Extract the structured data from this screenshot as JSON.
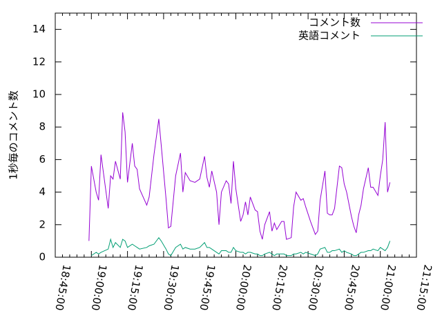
{
  "chart_data": {
    "type": "line",
    "ylabel": "1秒毎のコメント数",
    "x": [
      "18:59:00",
      "19:00:00",
      "19:02:00",
      "19:03:00",
      "19:04:00",
      "19:07:00",
      "19:08:00",
      "19:09:00",
      "19:10:00",
      "19:12:00",
      "19:13:00",
      "19:14:00",
      "19:15:00",
      "19:17:00",
      "19:18:00",
      "19:19:00",
      "19:20:00",
      "19:23:00",
      "19:24:00",
      "19:26:00",
      "19:28:00",
      "19:29:00",
      "19:31:00",
      "19:32:00",
      "19:33:00",
      "19:35:00",
      "19:37:00",
      "19:38:00",
      "19:39:00",
      "19:41:00",
      "19:43:00",
      "19:45:00",
      "19:47:00",
      "19:48:00",
      "19:49:00",
      "19:50:00",
      "19:52:00",
      "19:53:00",
      "19:54:00",
      "19:56:00",
      "19:57:00",
      "19:58:00",
      "19:59:00",
      "20:00:00",
      "20:02:00",
      "20:03:00",
      "20:04:00",
      "20:05:00",
      "20:06:00",
      "20:08:00",
      "20:09:00",
      "20:10:00",
      "20:11:00",
      "20:12:00",
      "20:14:00",
      "20:15:00",
      "20:16:00",
      "20:17:00",
      "20:19:00",
      "20:20:00",
      "20:21:00",
      "20:23:00",
      "20:24:00",
      "20:25:00",
      "20:27:00",
      "20:28:00",
      "20:29:00",
      "20:31:00",
      "20:33:00",
      "20:34:00",
      "20:35:00",
      "20:37:00",
      "20:38:00",
      "20:39:00",
      "20:40:00",
      "20:41:00",
      "20:43:00",
      "20:44:00",
      "20:45:00",
      "20:46:00",
      "20:48:00",
      "20:49:00",
      "20:50:00",
      "20:51:00",
      "20:52:00",
      "20:53:00",
      "20:55:00",
      "20:56:00",
      "20:57:00",
      "20:59:00",
      "21:00:00",
      "21:01:00",
      "21:02:00",
      "21:03:00",
      "21:04:00"
    ],
    "series": [
      {
        "name": "コメント数",
        "color": "#9400d3",
        "values": [
          1.0,
          5.6,
          4.0,
          3.5,
          6.3,
          3.0,
          5.0,
          4.8,
          5.9,
          4.8,
          8.9,
          7.7,
          4.6,
          7.0,
          5.6,
          5.4,
          4.2,
          3.2,
          3.7,
          6.3,
          8.5,
          6.9,
          3.6,
          1.8,
          1.9,
          5.0,
          6.4,
          4.0,
          5.2,
          4.7,
          4.6,
          4.8,
          6.2,
          4.9,
          4.3,
          5.3,
          4.0,
          2.0,
          4.0,
          4.7,
          4.5,
          3.3,
          5.9,
          4.2,
          2.2,
          2.6,
          3.4,
          2.6,
          3.7,
          2.9,
          2.8,
          1.6,
          1.1,
          2.0,
          2.8,
          1.6,
          2.1,
          1.7,
          2.2,
          2.2,
          1.1,
          1.2,
          3.1,
          4.0,
          3.5,
          3.6,
          3.1,
          2.2,
          1.4,
          1.6,
          3.5,
          5.3,
          2.7,
          2.6,
          2.6,
          3.0,
          5.6,
          5.5,
          4.5,
          4.0,
          2.5,
          1.9,
          1.5,
          2.6,
          3.2,
          4.2,
          5.5,
          4.3,
          4.3,
          3.8,
          5.0,
          6.0,
          8.3,
          4.0,
          4.6
        ]
      },
      {
        "name": "英語コメント",
        "color": "#009e73",
        "values": [
          null,
          0.1,
          0.3,
          0.2,
          0.3,
          0.5,
          1.1,
          0.6,
          0.9,
          0.6,
          1.1,
          1.0,
          0.6,
          0.8,
          0.7,
          0.6,
          0.5,
          0.6,
          0.7,
          0.8,
          1.2,
          1.0,
          0.5,
          0.2,
          0.1,
          0.6,
          0.8,
          0.5,
          0.6,
          0.5,
          0.5,
          0.6,
          0.9,
          0.6,
          0.6,
          0.5,
          0.3,
          0.2,
          0.4,
          0.4,
          0.3,
          0.3,
          0.6,
          0.4,
          0.3,
          0.3,
          0.2,
          0.3,
          0.3,
          0.2,
          0.2,
          0.1,
          0.1,
          0.2,
          0.3,
          0.2,
          0.1,
          0.2,
          0.2,
          0.2,
          0.1,
          0.1,
          0.2,
          0.2,
          0.3,
          0.2,
          0.3,
          0.2,
          0.1,
          0.2,
          0.5,
          0.6,
          0.3,
          0.3,
          0.4,
          0.4,
          0.5,
          0.3,
          0.4,
          0.3,
          0.2,
          0.1,
          0.1,
          0.2,
          0.3,
          0.3,
          0.4,
          0.4,
          0.5,
          0.4,
          0.6,
          0.5,
          0.4,
          0.6,
          1.0
        ]
      }
    ],
    "xlim": [
      "18:45:00",
      "21:15:00"
    ],
    "xticks": [
      "18:45:00",
      "19:00:00",
      "19:15:00",
      "19:30:00",
      "19:45:00",
      "20:00:00",
      "20:15:00",
      "20:30:00",
      "20:45:00",
      "21:00:00",
      "21:15:00"
    ],
    "xminor_intervals": 5,
    "ylim": [
      0,
      15
    ],
    "yticks": [
      0,
      2,
      4,
      6,
      8,
      10,
      12,
      14
    ],
    "legend": "top-right"
  }
}
